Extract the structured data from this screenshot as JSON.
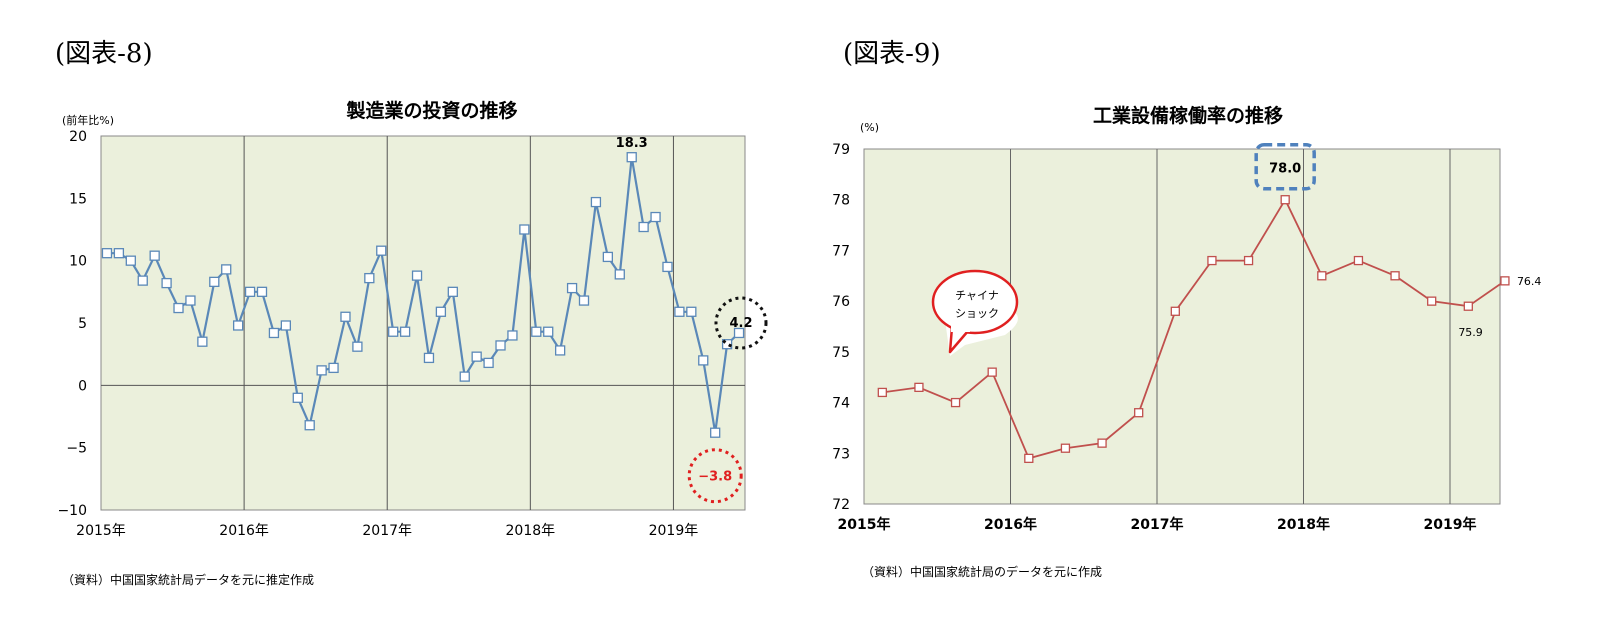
{
  "figures": [
    {
      "label": "(図表-8)",
      "source": "（資料）中国国家統計局データを元に推定作成",
      "annotations": [
        {
          "text": "18.3"
        },
        {
          "text": "4.2"
        },
        {
          "text": "-3.8"
        }
      ]
    },
    {
      "label": "(図表-9)",
      "source": "（資料）中国国家統計局のデータを元に作成",
      "annotations": [
        {
          "text": "78.0"
        },
        {
          "text": "76.4"
        },
        {
          "text": "75.9"
        }
      ],
      "callout_lines": [
        "チャイナ",
        "ショック"
      ]
    }
  ],
  "chart_data": [
    {
      "type": "line",
      "title": "製造業の投資の推移",
      "ylabel": "(前年比%)",
      "ylim": [
        -10,
        20
      ],
      "yticks": [
        20,
        15,
        10,
        5,
        0,
        -5,
        -10
      ],
      "year_labels": [
        "2015年",
        "2016年",
        "2017年",
        "2018年",
        "2019年"
      ],
      "x_period": "2015-01 to 2019-06, monthly",
      "grid": "vertical lines at year boundaries, zero line",
      "colors": {
        "line": "#5a88b8",
        "marker_fill": "#ffffff",
        "plot_bg": "#ebf0dc",
        "note_red": "#e02020"
      },
      "series": [
        {
          "values": [
            10.6,
            10.6,
            10.0,
            8.4,
            10.4,
            8.2,
            6.2,
            6.8,
            3.5,
            8.3,
            9.3,
            4.8,
            7.5,
            7.5,
            4.2,
            4.8,
            -1.0,
            -3.2,
            1.2,
            1.4,
            5.5,
            3.1,
            8.6,
            10.8,
            4.3,
            4.3,
            8.8,
            2.2,
            5.9,
            7.5,
            0.7,
            2.3,
            1.8,
            3.2,
            4.0,
            12.5,
            4.3,
            4.3,
            2.8,
            7.8,
            6.8,
            14.7,
            10.3,
            8.9,
            18.3,
            12.7,
            13.5,
            9.5,
            5.9,
            5.9,
            2.0,
            -3.8,
            3.3,
            4.2
          ]
        }
      ]
    },
    {
      "type": "line",
      "title": "工業設備稼働率の推移",
      "ylabel": "(%)",
      "ylim": [
        72,
        79
      ],
      "yticks": [
        79,
        78,
        77,
        76,
        75,
        74,
        73,
        72
      ],
      "year_labels": [
        "2015年",
        "2016年",
        "2017年",
        "2018年",
        "2019年"
      ],
      "x_period": "2015-Q1 to 2019-Q2, quarterly",
      "grid": "vertical lines at year boundaries",
      "colors": {
        "line": "#c0504d",
        "marker_fill": "#ffffff",
        "plot_bg": "#ebf0dc",
        "note_blue": "#4f81bd",
        "callout_red": "#e02020"
      },
      "series": [
        {
          "values": [
            74.2,
            74.3,
            74.0,
            74.6,
            72.9,
            73.1,
            73.2,
            73.8,
            75.8,
            76.8,
            76.8,
            78.0,
            76.5,
            76.8,
            76.5,
            76.0,
            75.9,
            76.4
          ]
        }
      ]
    }
  ]
}
